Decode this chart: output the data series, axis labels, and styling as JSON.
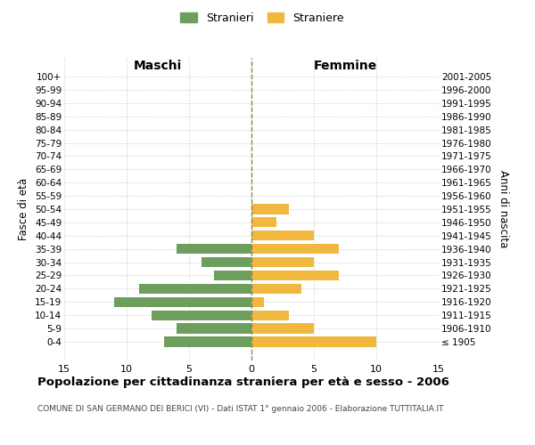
{
  "age_groups": [
    "100+",
    "95-99",
    "90-94",
    "85-89",
    "80-84",
    "75-79",
    "70-74",
    "65-69",
    "60-64",
    "55-59",
    "50-54",
    "45-49",
    "40-44",
    "35-39",
    "30-34",
    "25-29",
    "20-24",
    "15-19",
    "10-14",
    "5-9",
    "0-4"
  ],
  "birth_years": [
    "≤ 1905",
    "1906-1910",
    "1911-1915",
    "1916-1920",
    "1921-1925",
    "1926-1930",
    "1931-1935",
    "1936-1940",
    "1941-1945",
    "1946-1950",
    "1951-1955",
    "1956-1960",
    "1961-1965",
    "1966-1970",
    "1971-1975",
    "1976-1980",
    "1981-1985",
    "1986-1990",
    "1991-1995",
    "1996-2000",
    "2001-2005"
  ],
  "maschi": [
    0,
    0,
    0,
    0,
    0,
    0,
    0,
    0,
    0,
    0,
    0,
    0,
    0,
    6,
    4,
    3,
    9,
    11,
    8,
    6,
    7
  ],
  "femmine": [
    0,
    0,
    0,
    0,
    0,
    0,
    0,
    0,
    0,
    0,
    3,
    2,
    5,
    7,
    5,
    7,
    4,
    1,
    3,
    5,
    10
  ],
  "male_color": "#6e9e5e",
  "female_color": "#f0b83f",
  "title": "Popolazione per cittadinanza straniera per età e sesso - 2006",
  "subtitle": "COMUNE DI SAN GERMANO DEI BERICI (VI) - Dati ISTAT 1° gennaio 2006 - Elaborazione TUTTITALIA.IT",
  "xlabel_left": "Maschi",
  "xlabel_right": "Femmine",
  "ylabel_left": "Fasce di età",
  "ylabel_right": "Anni di nascita",
  "legend_male": "Stranieri",
  "legend_female": "Straniere",
  "xlim": 15,
  "bg_color": "#ffffff",
  "grid_color": "#cccccc"
}
